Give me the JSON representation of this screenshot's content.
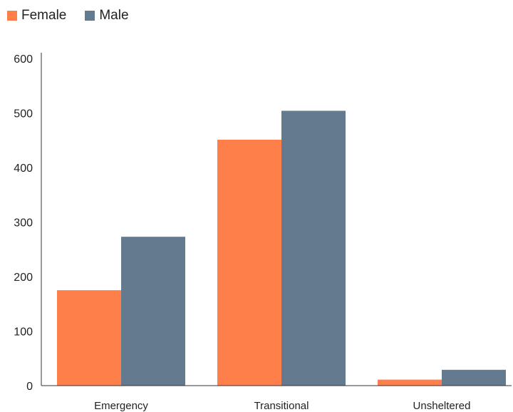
{
  "colors": {
    "female": "#ff7f4b",
    "male": "#647b8f",
    "axis": "#333333"
  },
  "chart_data": {
    "type": "bar",
    "categories": [
      "Emergency",
      "Transitional",
      "Unsheltered"
    ],
    "series": [
      {
        "name": "Female",
        "values": [
          175,
          451,
          11
        ]
      },
      {
        "name": "Male",
        "values": [
          273,
          504,
          29
        ]
      }
    ],
    "ylim": [
      0,
      600
    ],
    "yticks": [
      0,
      100,
      200,
      300,
      400,
      500,
      600
    ],
    "xlabel": "",
    "ylabel": "",
    "title": "",
    "grid": false,
    "legend_position": "top-left"
  }
}
